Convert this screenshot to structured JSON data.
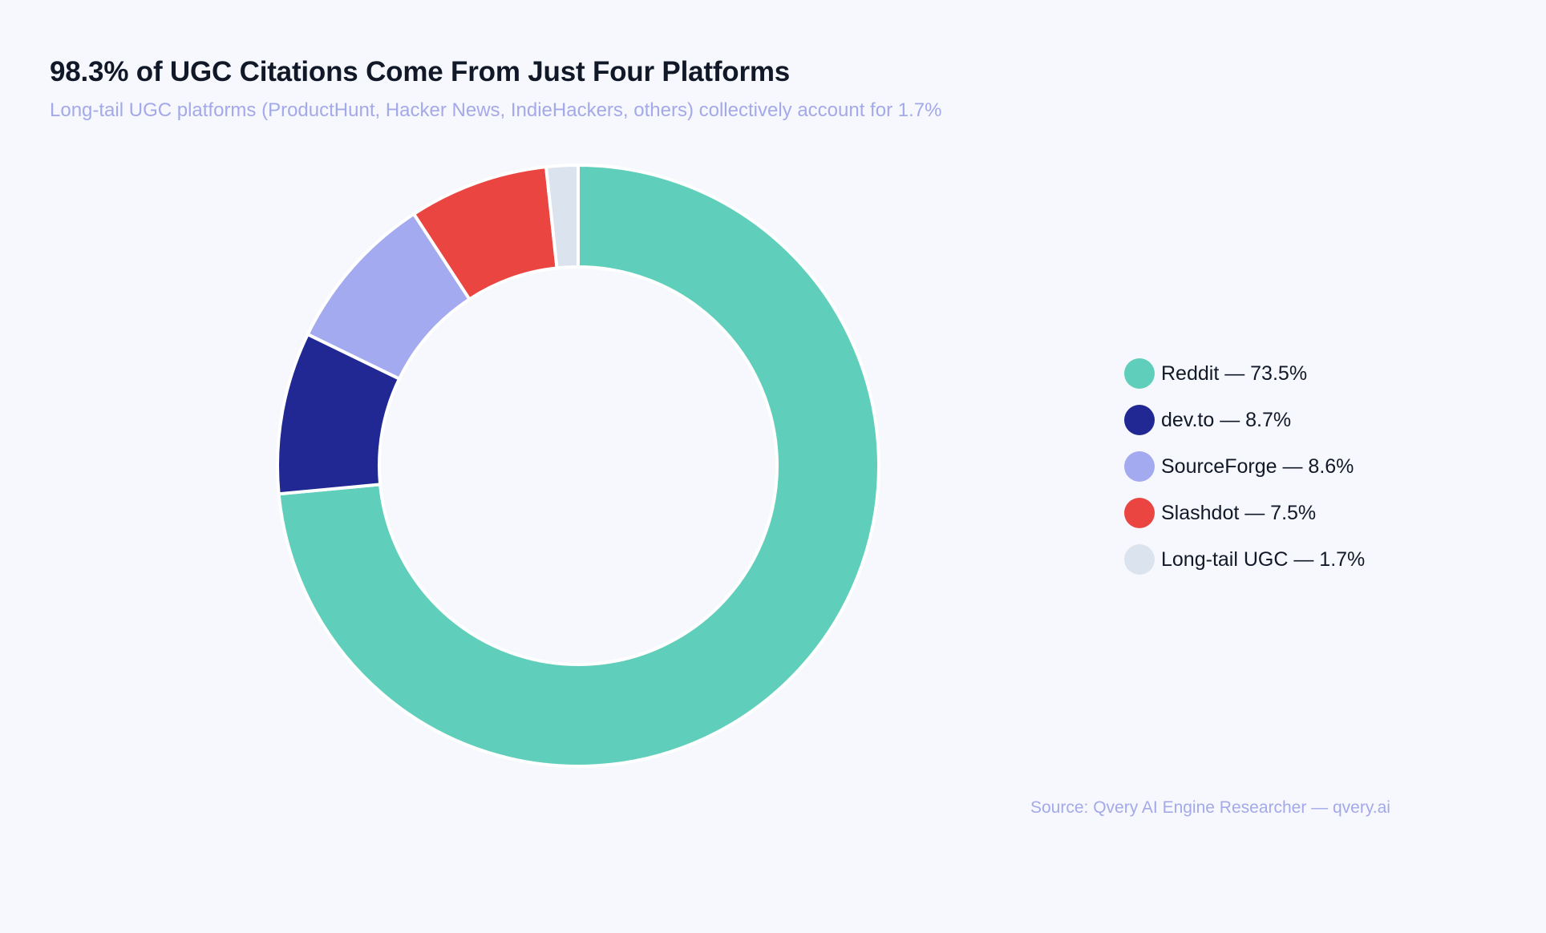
{
  "chart_data": {
    "type": "pie",
    "title": "98.3% of UGC Citations Come From Just Four Platforms",
    "subtitle": "Long-tail UGC platforms (ProductHunt, Hacker News, IndieHackers, others) collectively account for 1.7%",
    "categories": [
      "Reddit",
      "dev.to",
      "SourceForge",
      "Slashdot",
      "Long-tail UGC"
    ],
    "values": [
      73.5,
      8.7,
      8.6,
      7.5,
      1.7
    ],
    "colors": [
      "#5fcfbc",
      "#212893",
      "#a4aaf0",
      "#ea4541",
      "#dbe3ee"
    ],
    "legend": {
      "placement": "right",
      "items": [
        {
          "label": "Reddit — 73.5%",
          "color": "#5fcfbc"
        },
        {
          "label": "dev.to — 8.7%",
          "color": "#212893"
        },
        {
          "label": "SourceForge — 8.6%",
          "color": "#a4aaf0"
        },
        {
          "label": "Slashdot — 7.5%",
          "color": "#ea4541"
        },
        {
          "label": "Long-tail UGC — 1.7%",
          "color": "#dbe3ee"
        }
      ]
    },
    "source": "Source: Qvery AI Engine Researcher — qvery.ai"
  }
}
